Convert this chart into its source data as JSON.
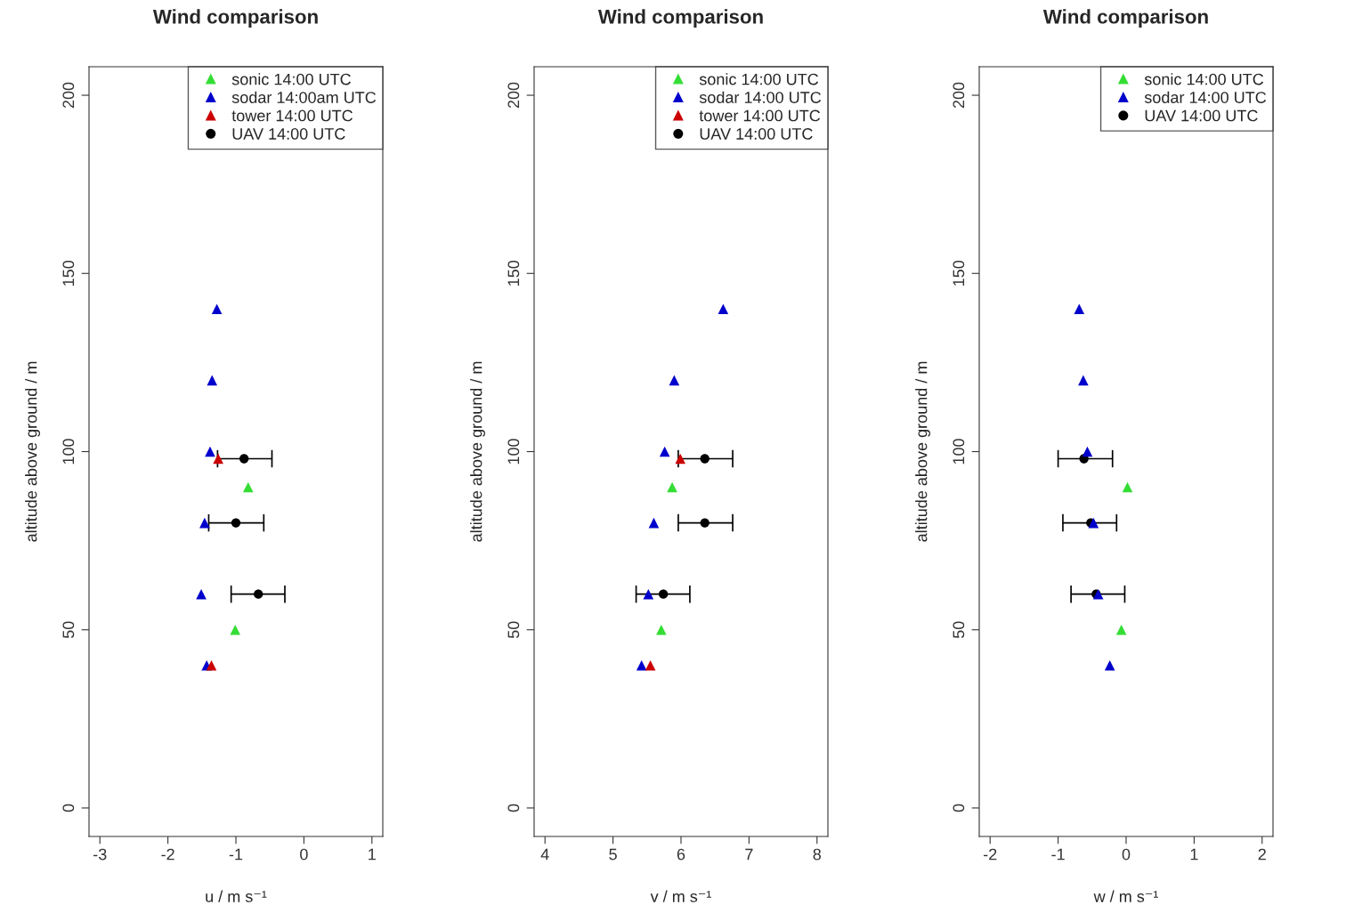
{
  "chart_data": [
    {
      "type": "scatter",
      "title": "Wind comparison",
      "xlabel": "u / m s⁻¹",
      "ylabel": "altitude above ground / m",
      "xlim": [
        -3.16,
        1.16
      ],
      "xticks": [
        -3,
        -2,
        -1,
        0,
        1
      ],
      "ylim": [
        -8,
        208
      ],
      "yticks": [
        0,
        50,
        100,
        150,
        200
      ],
      "grid": false,
      "legend": "top right",
      "series": [
        {
          "name": "sonic 14:00 UTC",
          "color": "#33dd33",
          "marker": "triangle",
          "x": [
            -0.82,
            -1.01
          ],
          "values": [
            90,
            50
          ]
        },
        {
          "name": "sodar 14:00am UTC",
          "color": "#0000cc",
          "marker": "triangle",
          "x": [
            -1.28,
            -1.35,
            -1.38,
            -1.46,
            -1.51,
            -1.43
          ],
          "values": [
            140,
            120,
            100,
            80,
            60,
            40
          ]
        },
        {
          "name": "tower 14:00 UTC",
          "color": "#cc0000",
          "marker": "triangle",
          "x": [
            -1.26,
            -1.36
          ],
          "values": [
            98,
            40
          ]
        },
        {
          "name": "UAV 14:00 UTC",
          "color": "#000000",
          "marker": "circle",
          "x": [
            -0.88,
            -1.0,
            -0.67
          ],
          "values": [
            98,
            80,
            60
          ],
          "xerrors": [
            [
              -1.27,
              -0.47
            ],
            [
              -1.4,
              -0.59
            ],
            [
              -1.07,
              -0.28
            ]
          ]
        }
      ]
    },
    {
      "type": "scatter",
      "title": "Wind comparison",
      "xlabel": "v / m s⁻¹",
      "ylabel": "altitude above ground / m",
      "xlim": [
        3.84,
        8.16
      ],
      "xticks": [
        4,
        5,
        6,
        7,
        8
      ],
      "ylim": [
        -8,
        208
      ],
      "yticks": [
        0,
        50,
        100,
        150,
        200
      ],
      "grid": false,
      "legend": "top right",
      "series": [
        {
          "name": "sonic 14:00 UTC",
          "color": "#33dd33",
          "marker": "triangle",
          "x": [
            5.87,
            5.71
          ],
          "values": [
            90,
            50
          ]
        },
        {
          "name": "sodar 14:00 UTC",
          "color": "#0000cc",
          "marker": "triangle",
          "x": [
            6.62,
            5.9,
            5.76,
            5.6,
            5.52,
            5.42
          ],
          "values": [
            140,
            120,
            100,
            80,
            60,
            40
          ]
        },
        {
          "name": "tower 14:00 UTC",
          "color": "#cc0000",
          "marker": "triangle",
          "x": [
            5.99,
            5.55
          ],
          "values": [
            98,
            40
          ]
        },
        {
          "name": "UAV 14:00 UTC",
          "color": "#000000",
          "marker": "circle",
          "x": [
            6.35,
            6.35,
            5.74
          ],
          "values": [
            98,
            80,
            60
          ],
          "xerrors": [
            [
              5.96,
              6.76
            ],
            [
              5.96,
              6.76
            ],
            [
              5.34,
              6.13
            ]
          ]
        }
      ]
    },
    {
      "type": "scatter",
      "title": "Wind comparison",
      "xlabel": "w / m s⁻¹",
      "ylabel": "altitude above ground / m",
      "xlim": [
        -2.16,
        2.16
      ],
      "xticks": [
        -2,
        -1,
        0,
        1,
        2
      ],
      "ylim": [
        -8,
        208
      ],
      "yticks": [
        0,
        50,
        100,
        150,
        200
      ],
      "grid": false,
      "legend": "top right",
      "series": [
        {
          "name": "sonic 14:00 UTC",
          "color": "#33dd33",
          "marker": "triangle",
          "x": [
            0.02,
            -0.07
          ],
          "values": [
            90,
            50
          ]
        },
        {
          "name": "sodar 14:00 UTC",
          "color": "#0000cc",
          "marker": "triangle",
          "x": [
            -0.69,
            -0.63,
            -0.57,
            -0.48,
            -0.41,
            -0.24
          ],
          "values": [
            140,
            120,
            100,
            80,
            60,
            40
          ]
        },
        {
          "name": "UAV 14:00 UTC",
          "color": "#000000",
          "marker": "circle",
          "x": [
            -0.62,
            -0.52,
            -0.44
          ],
          "values": [
            98,
            80,
            60
          ],
          "xerrors": [
            [
              -1.0,
              -0.2
            ],
            [
              -0.93,
              -0.14
            ],
            [
              -0.81,
              -0.02
            ]
          ]
        }
      ]
    }
  ]
}
